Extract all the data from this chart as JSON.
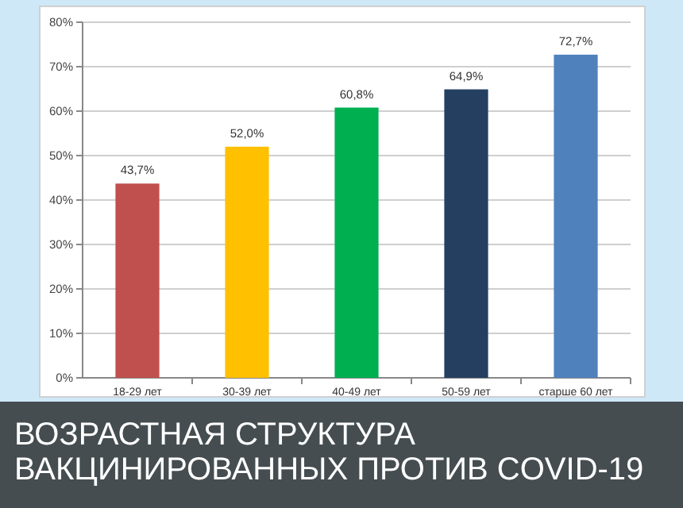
{
  "chart_data": {
    "type": "bar",
    "title": "ВОЗРАСТНАЯ СТРУКТУРА ВАКЦИНИРОВАННЫХ ПРОТИВ COVID-19",
    "categories": [
      "18-29 лет",
      "30-39 лет",
      "40-49 лет",
      "50-59 лет",
      "старше 60 лет"
    ],
    "values": [
      43.7,
      52.0,
      60.8,
      64.9,
      72.7
    ],
    "value_labels": [
      "43,7%",
      "52,0%",
      "60,8%",
      "64,9%",
      "72,7%"
    ],
    "colors": [
      "#c0504d",
      "#ffc000",
      "#00b050",
      "#243f60",
      "#4f81bd"
    ],
    "ylim": [
      0,
      80
    ],
    "yticks": [
      {
        "value": 0,
        "label": "0%"
      },
      {
        "value": 10,
        "label": "10%"
      },
      {
        "value": 20,
        "label": "20%"
      },
      {
        "value": 30,
        "label": "30%"
      },
      {
        "value": 40,
        "label": "40%"
      },
      {
        "value": 50,
        "label": "50%"
      },
      {
        "value": 60,
        "label": "60%"
      },
      {
        "value": 70,
        "label": "70%"
      },
      {
        "value": 80,
        "label": "80%"
      }
    ],
    "grid": "y"
  }
}
